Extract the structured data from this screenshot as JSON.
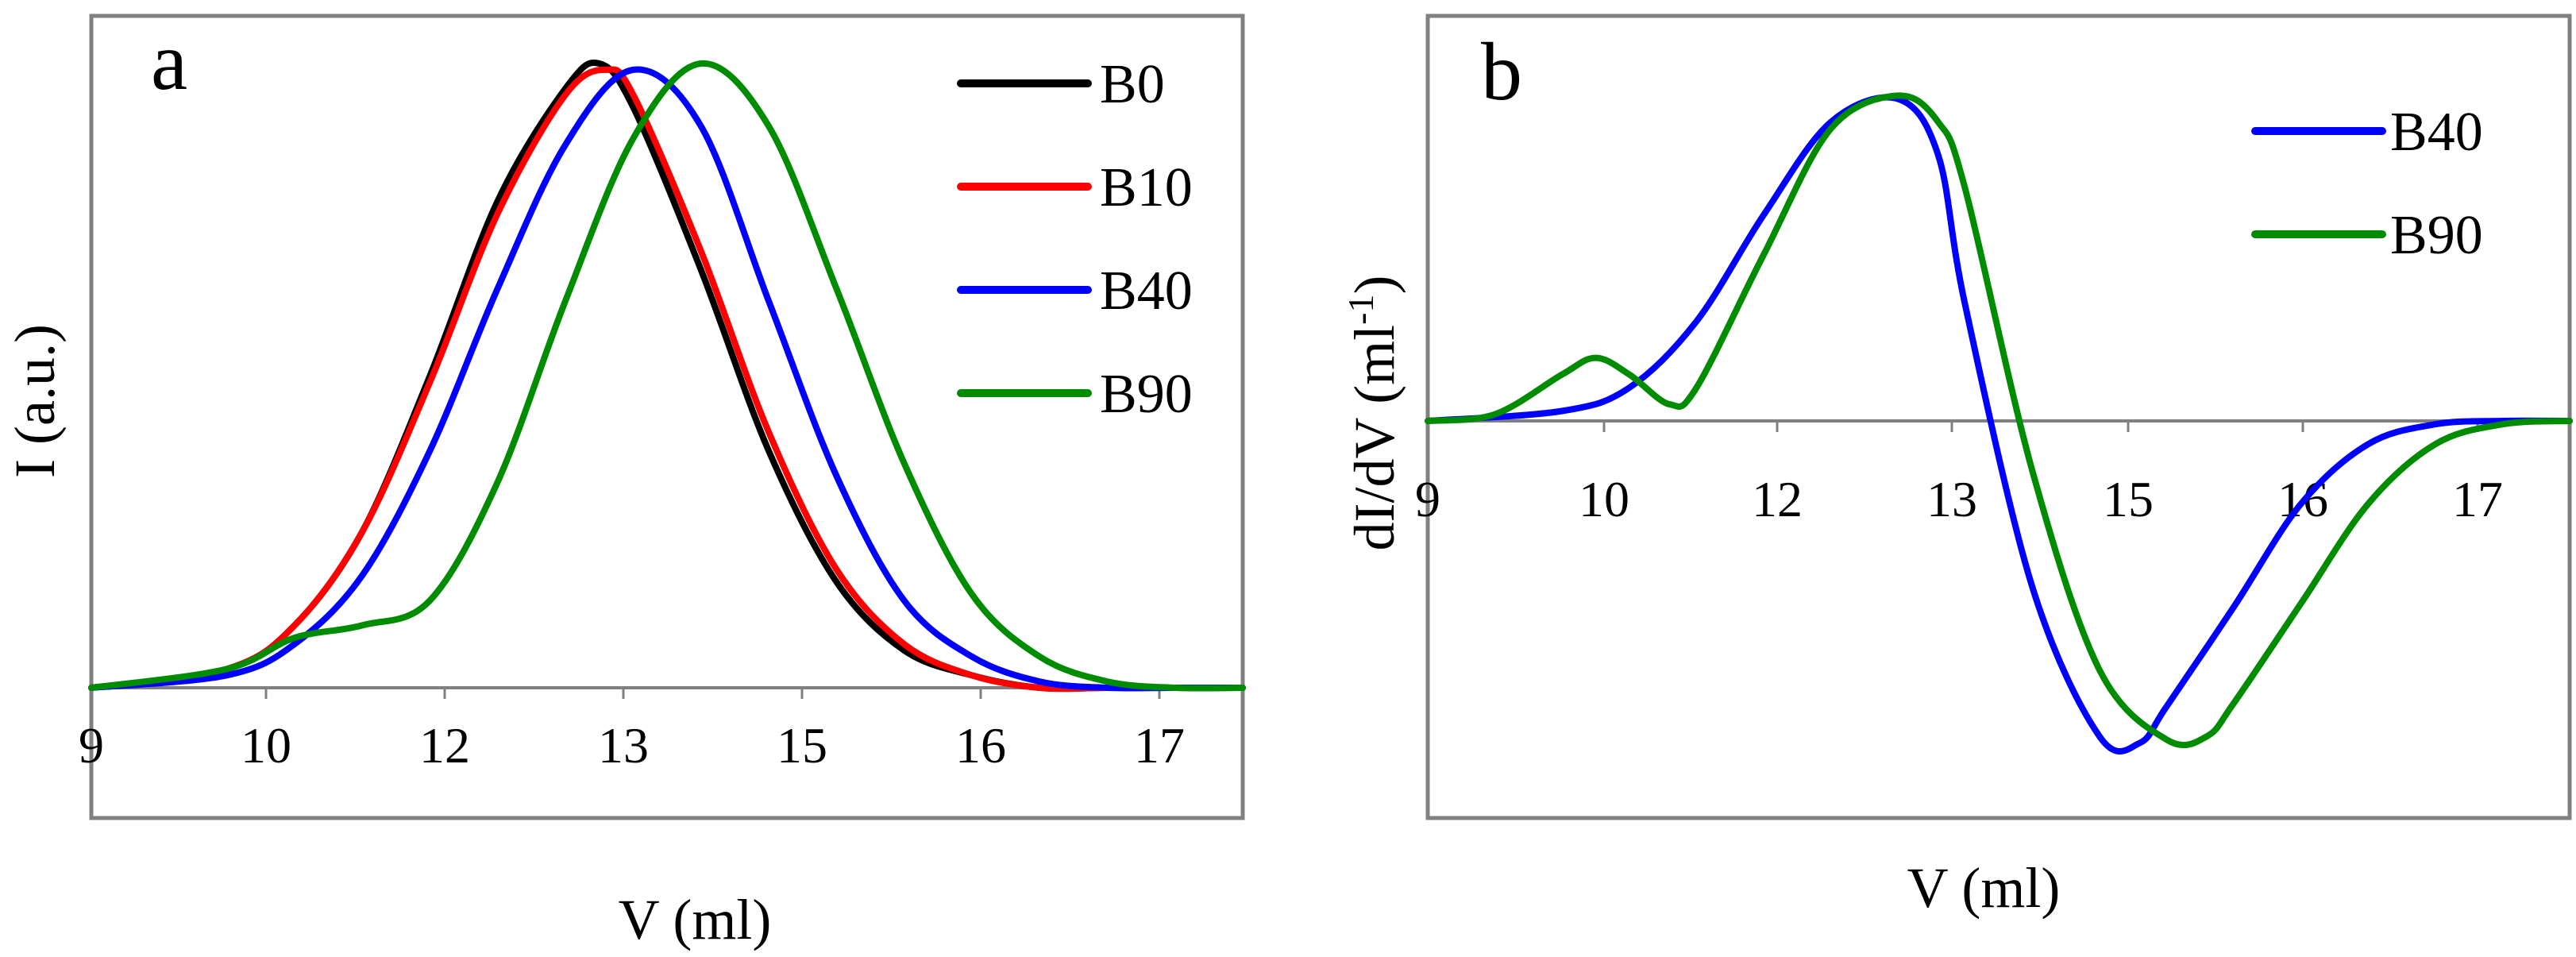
{
  "colors": {
    "B0": "#000000",
    "B10": "#ff0000",
    "B40": "#0000ff",
    "B90": "#008c00",
    "zero_line": "#808080",
    "frame": "#808080"
  },
  "chart_data": [
    {
      "type": "line",
      "panel_label": "a",
      "xlabel": "V (ml)",
      "ylabel": "I (a.u.)",
      "x_tick_labels": [
        "9",
        "10",
        "12",
        "13",
        "15",
        "16",
        "17"
      ],
      "grid": false,
      "legend_position": "top-right",
      "series": [
        {
          "name": "B0",
          "color": "#000000",
          "x": [
            9.0,
            10.0,
            10.5,
            11.0,
            11.5,
            12.0,
            12.5,
            12.75,
            13.0,
            13.5,
            14.0,
            14.5,
            15.0,
            15.5,
            16.0,
            16.5,
            17.0,
            17.5
          ],
          "y": [
            0.0,
            0.03,
            0.1,
            0.25,
            0.5,
            0.78,
            0.96,
            1.0,
            0.93,
            0.67,
            0.38,
            0.17,
            0.06,
            0.02,
            0.0,
            0.0,
            0.0,
            0.0
          ]
        },
        {
          "name": "B10",
          "color": "#ff0000",
          "x": [
            9.0,
            10.0,
            10.5,
            11.0,
            11.5,
            12.0,
            12.5,
            12.8,
            13.0,
            13.5,
            14.0,
            14.5,
            15.0,
            15.5,
            16.0,
            16.5,
            17.0,
            17.5
          ],
          "y": [
            0.0,
            0.03,
            0.1,
            0.25,
            0.49,
            0.76,
            0.95,
            0.99,
            0.95,
            0.7,
            0.41,
            0.19,
            0.07,
            0.02,
            0.0,
            0.0,
            0.0,
            0.0
          ]
        },
        {
          "name": "B40",
          "color": "#0000ff",
          "x": [
            9.0,
            10.0,
            10.5,
            11.0,
            11.5,
            12.0,
            12.5,
            13.0,
            13.5,
            14.0,
            14.5,
            15.0,
            15.5,
            16.0,
            16.5,
            17.0,
            17.5
          ],
          "y": [
            0.0,
            0.02,
            0.07,
            0.18,
            0.38,
            0.64,
            0.87,
            0.99,
            0.9,
            0.62,
            0.34,
            0.14,
            0.05,
            0.01,
            0.0,
            0.0,
            0.0
          ]
        },
        {
          "name": "B90",
          "color": "#008c00",
          "x": [
            9.0,
            10.0,
            10.5,
            11.0,
            11.5,
            12.0,
            12.5,
            13.0,
            13.5,
            14.0,
            14.5,
            15.0,
            15.5,
            16.0,
            16.5,
            17.0,
            17.5
          ],
          "y": [
            0.0,
            0.03,
            0.08,
            0.1,
            0.14,
            0.33,
            0.62,
            0.88,
            1.0,
            0.9,
            0.64,
            0.36,
            0.15,
            0.05,
            0.01,
            0.0,
            0.0
          ]
        }
      ]
    },
    {
      "type": "line",
      "panel_label": "b",
      "xlabel": "V (ml)",
      "ylabel": "dI/dV (ml",
      "ylabel_superscript": "-1",
      "ylabel_suffix": ")",
      "x_tick_labels": [
        "9",
        "10",
        "12",
        "13",
        "15",
        "16",
        "17"
      ],
      "grid": false,
      "legend_position": "top-right",
      "series": [
        {
          "name": "B40",
          "color": "#0000ff",
          "x": [
            9.0,
            10.0,
            10.5,
            11.0,
            11.5,
            12.0,
            12.5,
            12.8,
            13.0,
            13.5,
            14.0,
            14.3,
            14.5,
            15.0,
            15.5,
            16.0,
            16.5,
            17.0,
            17.5
          ],
          "y": [
            0.0,
            0.03,
            0.1,
            0.3,
            0.62,
            0.9,
            0.97,
            0.8,
            0.35,
            -0.5,
            -0.95,
            -0.97,
            -0.86,
            -0.56,
            -0.25,
            -0.07,
            -0.01,
            0.0,
            0.0
          ]
        },
        {
          "name": "B90",
          "color": "#008c00",
          "x": [
            9.0,
            9.5,
            10.0,
            10.25,
            10.5,
            10.8,
            11.0,
            11.5,
            12.0,
            12.5,
            12.8,
            13.0,
            13.5,
            14.0,
            14.5,
            14.8,
            15.0,
            15.5,
            16.0,
            16.5,
            17.0,
            17.5
          ],
          "y": [
            0.0,
            0.02,
            0.14,
            0.19,
            0.14,
            0.05,
            0.1,
            0.5,
            0.88,
            0.98,
            0.9,
            0.7,
            -0.15,
            -0.75,
            -0.96,
            -0.95,
            -0.85,
            -0.55,
            -0.25,
            -0.07,
            -0.01,
            0.0
          ]
        }
      ]
    }
  ]
}
